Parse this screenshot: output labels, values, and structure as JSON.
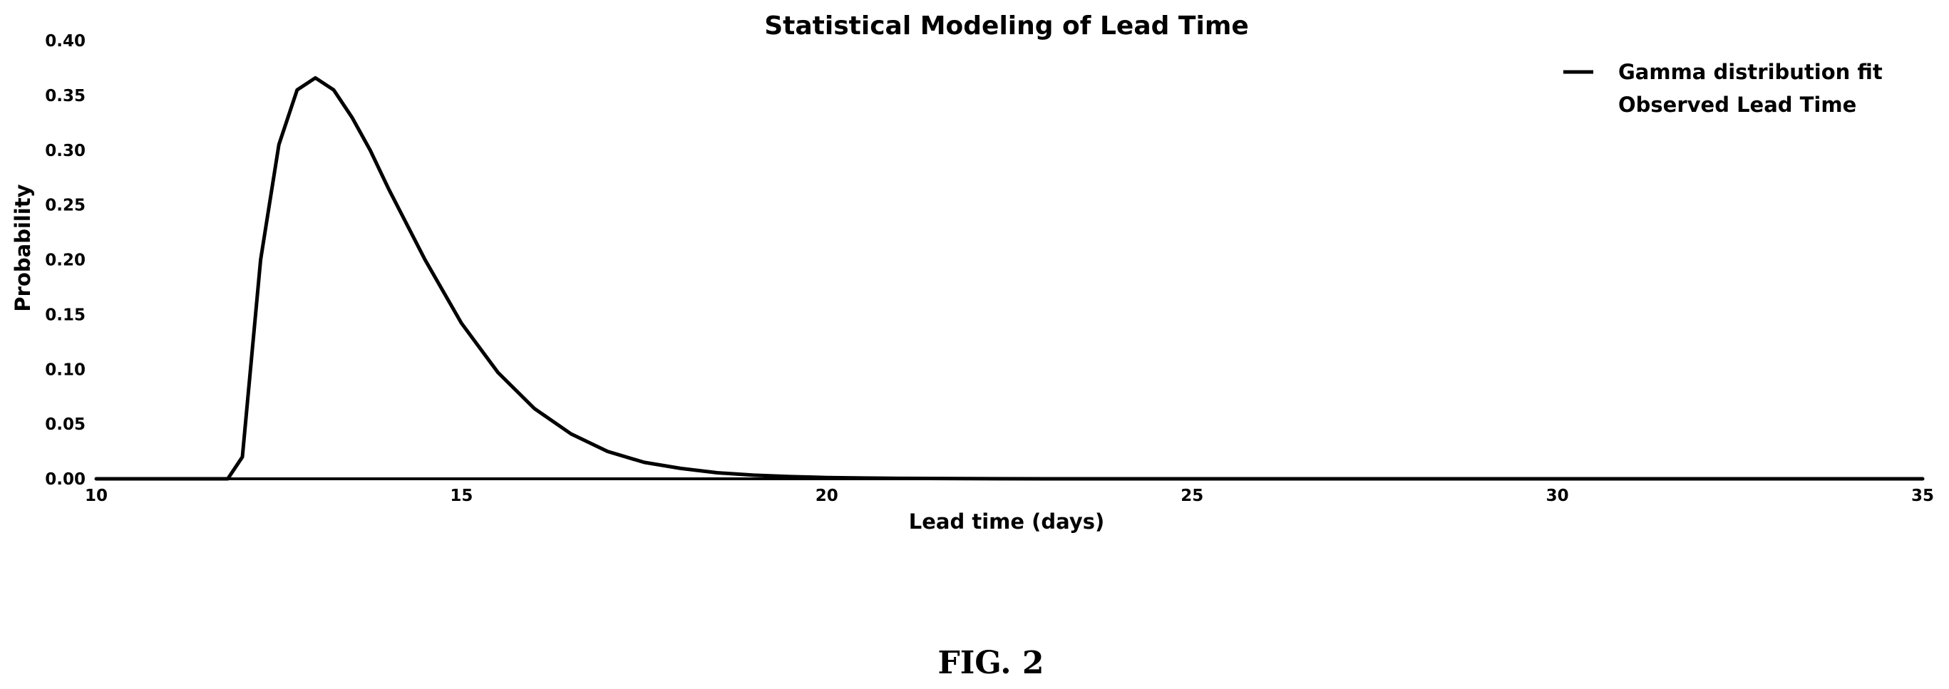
{
  "chart_data": {
    "type": "line",
    "title": "Statistical Modeling of Lead Time",
    "xlabel": "Lead time (days)",
    "ylabel": "Probability",
    "xlim": [
      10,
      35
    ],
    "ylim": [
      0,
      0.4
    ],
    "xticks": [
      "10",
      "15",
      "20",
      "25",
      "30",
      "35"
    ],
    "yticks": [
      "0.00",
      "0.05",
      "0.10",
      "0.15",
      "0.20",
      "0.25",
      "0.30",
      "0.35",
      "0.40"
    ],
    "grid": false,
    "legend_position": "top-right",
    "legend": [
      "Gamma distribution fit",
      "Observed Lead Time"
    ],
    "series": [
      {
        "name": "Gamma distribution fit",
        "x": [
          10,
          11.8,
          12.0,
          12.25,
          12.5,
          12.75,
          13.0,
          13.25,
          13.5,
          13.75,
          14.0,
          14.5,
          15.0,
          15.5,
          16.0,
          16.5,
          17.0,
          17.5,
          18.0,
          18.5,
          19.0,
          19.5,
          20.0,
          20.5,
          21.0,
          22.0,
          23.0,
          24.0,
          25.0,
          30.0,
          35.0
        ],
        "y": [
          0,
          0,
          0.02,
          0.2,
          0.305,
          0.355,
          0.366,
          0.355,
          0.33,
          0.3,
          0.265,
          0.2,
          0.142,
          0.097,
          0.064,
          0.041,
          0.025,
          0.015,
          0.0095,
          0.0055,
          0.0033,
          0.002,
          0.0012,
          0.0007,
          0.0004,
          0.0001,
          0,
          0,
          0,
          0,
          0
        ]
      }
    ]
  },
  "caption": "FIG. 2"
}
